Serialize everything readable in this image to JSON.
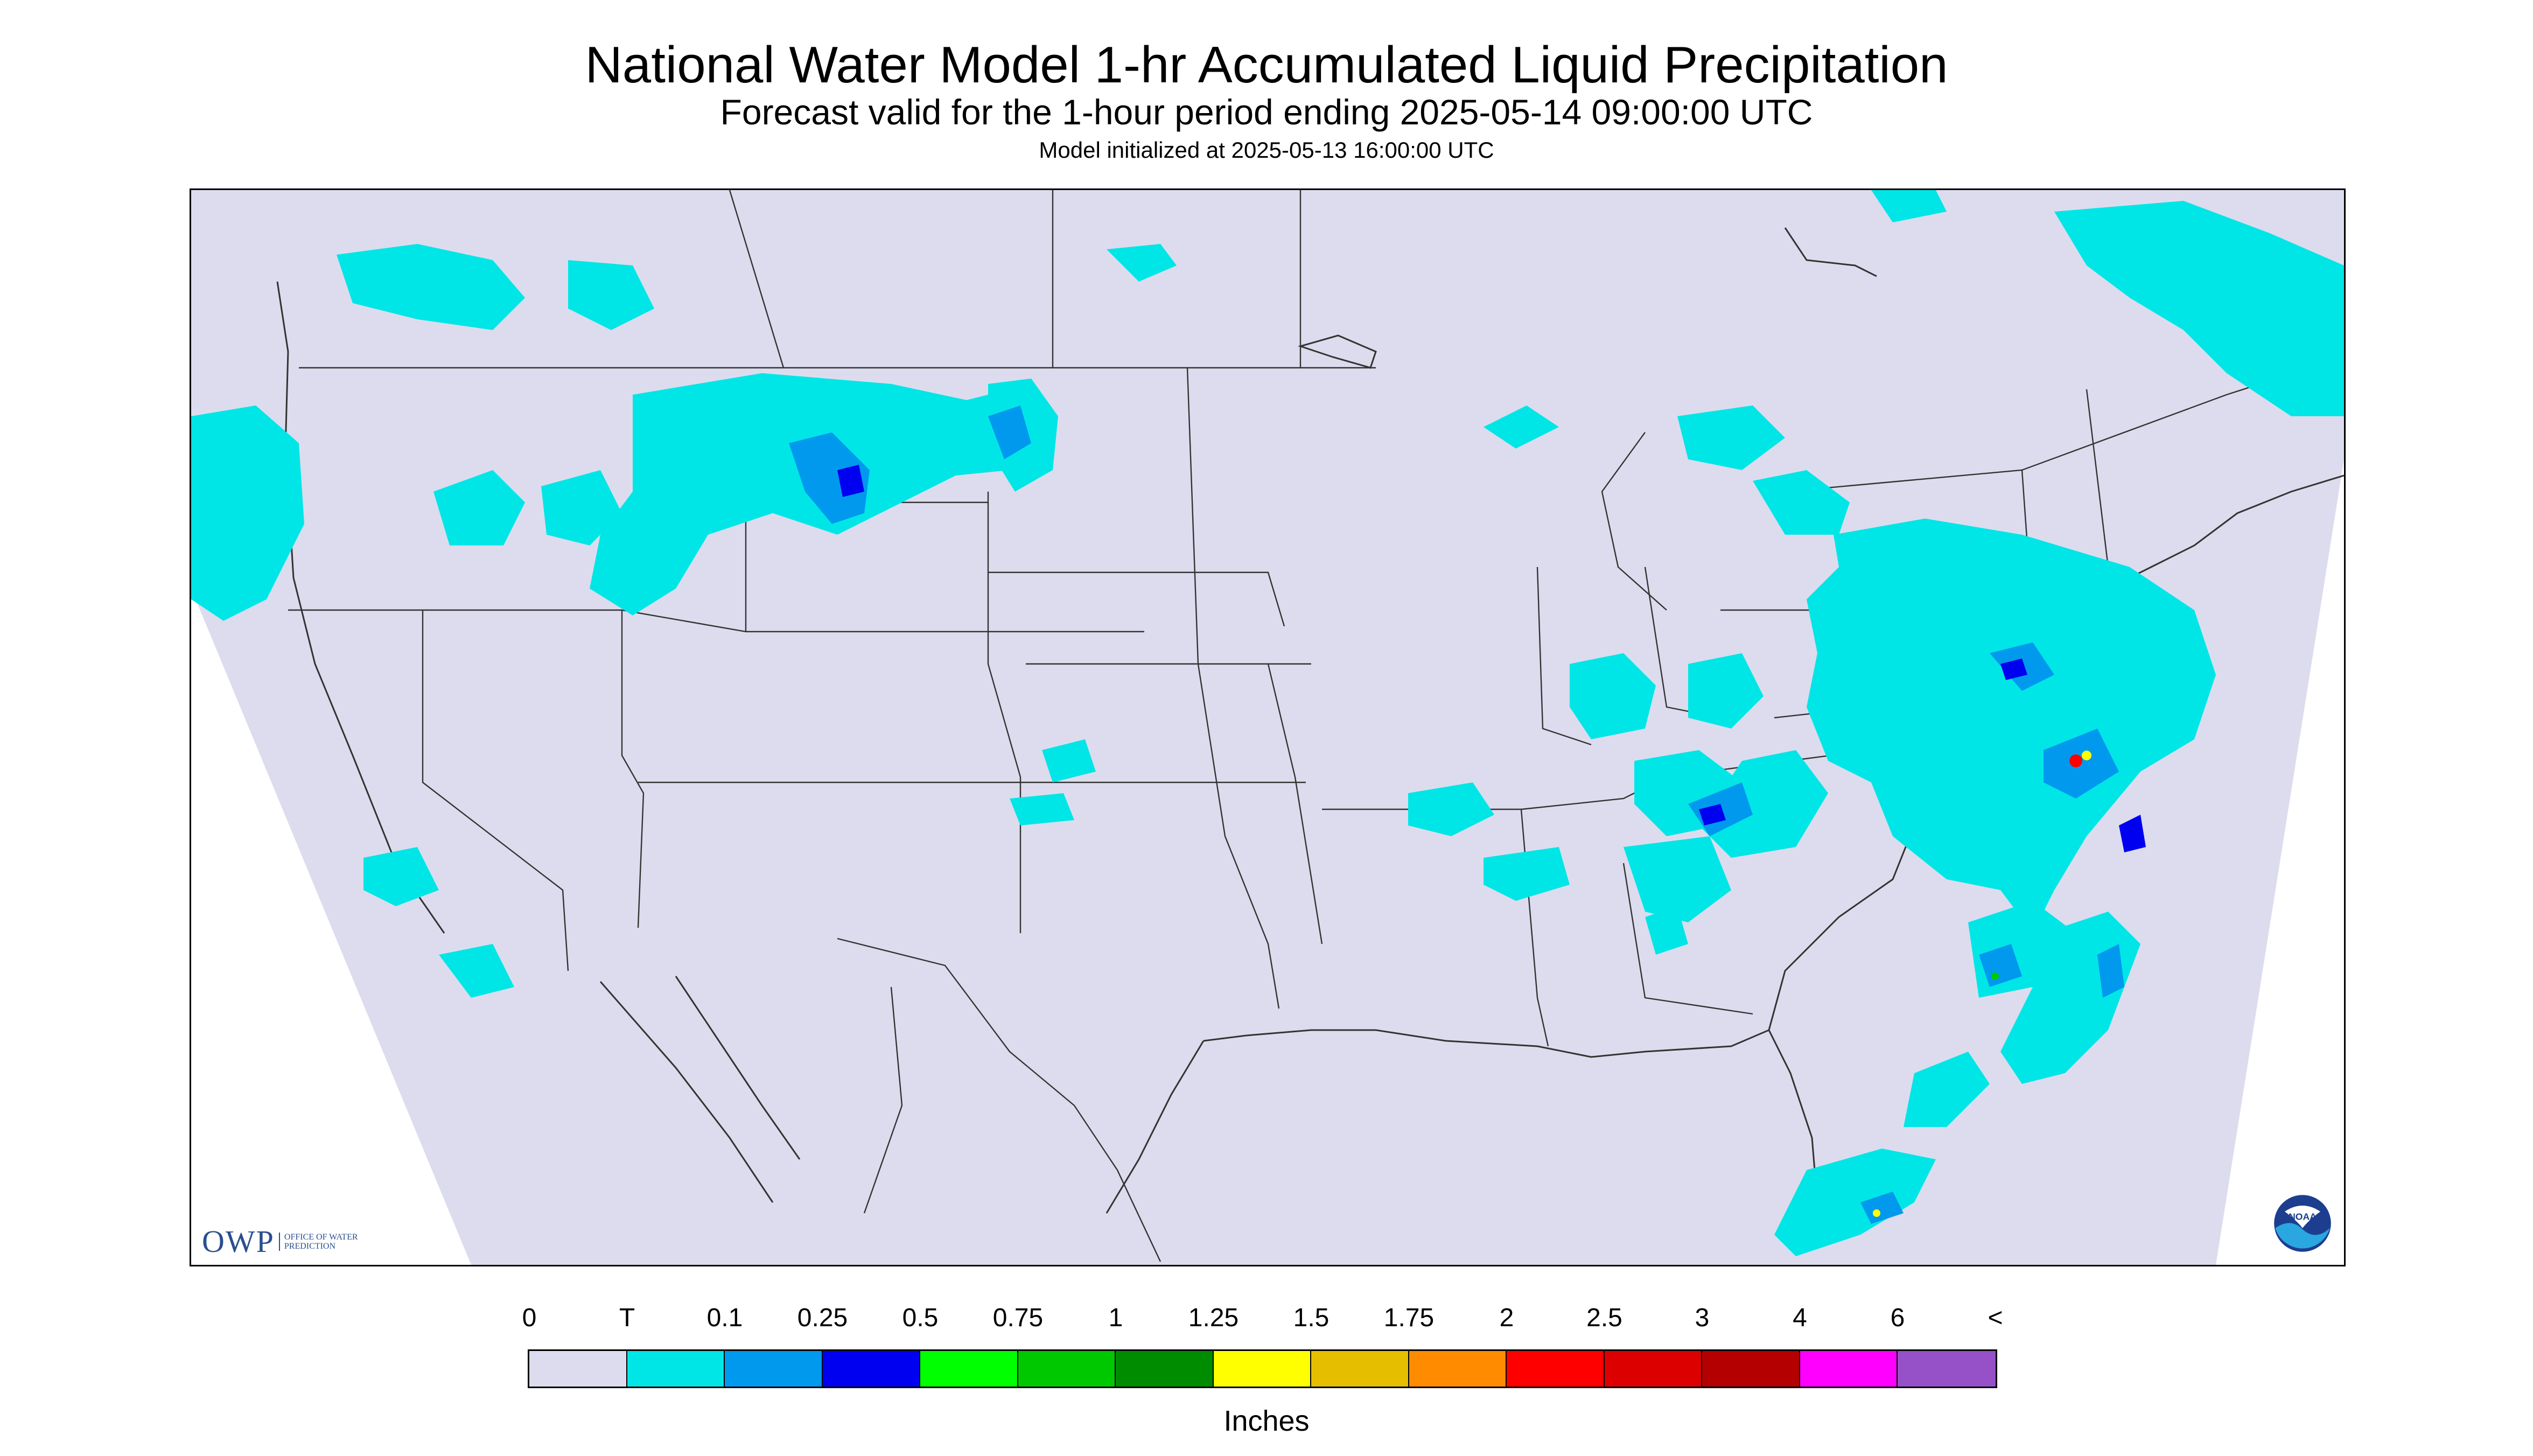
{
  "title": "National Water Model 1-hr Accumulated Liquid Precipitation",
  "subtitle": "Forecast valid for the 1-hour period ending 2025-05-14 09:00:00 UTC",
  "init_line": "Model initialized at 2025-05-13 16:00:00 UTC",
  "colorbar": {
    "labels": [
      "0",
      "T",
      "0.1",
      "0.25",
      "0.5",
      "0.75",
      "1",
      "1.25",
      "1.5",
      "1.75",
      "2",
      "2.5",
      "3",
      "4",
      "6",
      "<"
    ],
    "colors": [
      "#dcdcee",
      "#00e6e6",
      "#0099ee",
      "#0000f0",
      "#00ff00",
      "#00c800",
      "#008c00",
      "#ffff00",
      "#e6be00",
      "#ff8c00",
      "#ff0000",
      "#dc0000",
      "#b40000",
      "#ff00ff",
      "#9650c8"
    ],
    "units": "Inches"
  },
  "logos": {
    "owp_text": "OWP",
    "owp_sub": "OFFICE OF WATER PREDICTION",
    "noaa_text": "NOAA"
  },
  "colors": {
    "background": "#dcdcee",
    "trace": "#00e6e6",
    "light": "#0099ee",
    "moderate": "#0000f0",
    "boundaries": "#333333"
  }
}
